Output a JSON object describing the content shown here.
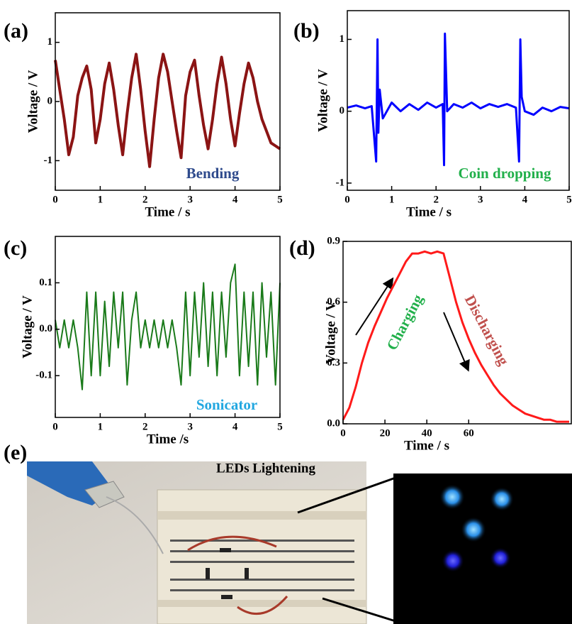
{
  "chart_data": [
    {
      "type": "line",
      "panel": "(a)",
      "xlabel": "Time / s",
      "ylabel": "Voltage / V",
      "annotations": [
        "Bending"
      ],
      "xlim": [
        0,
        5
      ],
      "xticks": [
        0,
        1,
        2,
        3,
        4,
        5
      ],
      "ylim": [
        -1.5,
        1.5
      ],
      "yticks": [
        -1,
        0,
        1
      ],
      "series": [
        {
          "color": "#8b1414",
          "x": [
            0,
            0.1,
            0.2,
            0.3,
            0.4,
            0.5,
            0.6,
            0.7,
            0.8,
            0.9,
            1.0,
            1.1,
            1.2,
            1.3,
            1.4,
            1.5,
            1.6,
            1.7,
            1.8,
            1.9,
            2.0,
            2.1,
            2.2,
            2.3,
            2.4,
            2.5,
            2.6,
            2.7,
            2.8,
            2.9,
            3.0,
            3.1,
            3.2,
            3.3,
            3.4,
            3.5,
            3.6,
            3.7,
            3.8,
            3.9,
            4.0,
            4.1,
            4.2,
            4.3,
            4.4,
            4.5,
            4.6,
            4.7,
            4.8,
            4.9,
            5.0
          ],
          "values": [
            0.7,
            0.2,
            -0.3,
            -0.9,
            -0.6,
            0.1,
            0.4,
            0.6,
            0.2,
            -0.7,
            -0.3,
            0.3,
            0.65,
            0.2,
            -0.4,
            -0.9,
            -0.2,
            0.4,
            0.8,
            0.2,
            -0.5,
            -1.1,
            -0.3,
            0.4,
            0.8,
            0.5,
            0.0,
            -0.5,
            -0.95,
            0.1,
            0.5,
            0.7,
            0.1,
            -0.4,
            -0.8,
            -0.3,
            0.3,
            0.75,
            0.3,
            -0.3,
            -0.75,
            -0.2,
            0.3,
            0.65,
            0.4,
            0.0,
            -0.3,
            -0.5,
            -0.7,
            -0.75,
            -0.8
          ]
        }
      ]
    },
    {
      "type": "line",
      "panel": "(b)",
      "xlabel": "Time / s",
      "ylabel": "Voltage / V",
      "annotations": [
        "Coin dropping"
      ],
      "xlim": [
        0,
        5
      ],
      "xticks": [
        0,
        1,
        2,
        3,
        4,
        5
      ],
      "ylim": [
        -1.1,
        1.4
      ],
      "yticks": [
        -1,
        0,
        1
      ],
      "series": [
        {
          "color": "#0000ff",
          "x": [
            0,
            0.2,
            0.4,
            0.55,
            0.65,
            0.68,
            0.7,
            0.73,
            0.8,
            1.0,
            1.2,
            1.4,
            1.6,
            1.8,
            2.0,
            2.15,
            2.18,
            2.2,
            2.25,
            2.4,
            2.6,
            2.8,
            3.0,
            3.2,
            3.4,
            3.6,
            3.8,
            3.87,
            3.9,
            3.93,
            4.0,
            4.2,
            4.4,
            4.6,
            4.8,
            5.0
          ],
          "values": [
            0.05,
            0.08,
            0.04,
            0.07,
            -0.7,
            1.0,
            -0.3,
            0.3,
            -0.1,
            0.12,
            0.0,
            0.1,
            0.02,
            0.12,
            0.05,
            0.1,
            -0.75,
            1.08,
            0.0,
            0.1,
            0.05,
            0.12,
            0.04,
            0.1,
            0.06,
            0.1,
            0.05,
            -0.7,
            1.0,
            0.2,
            0.0,
            -0.05,
            0.05,
            0.0,
            0.06,
            0.04
          ]
        }
      ]
    },
    {
      "type": "line",
      "panel": "(c)",
      "xlabel": "Time /s",
      "ylabel": "Voltage / V",
      "annotations": [
        "Sonicator"
      ],
      "xlim": [
        0,
        5
      ],
      "xticks": [
        0,
        1,
        2,
        3,
        4,
        5
      ],
      "ylim": [
        -0.19,
        0.2
      ],
      "yticks": [
        -0.1,
        {
          "value": 0,
          "label": "0.0"
        },
        0.1
      ],
      "series": [
        {
          "color": "#1a7a1a",
          "x": [
            0,
            0.1,
            0.2,
            0.3,
            0.4,
            0.5,
            0.6,
            0.7,
            0.8,
            0.9,
            1.0,
            1.1,
            1.2,
            1.3,
            1.4,
            1.5,
            1.6,
            1.7,
            1.8,
            1.9,
            2.0,
            2.1,
            2.2,
            2.3,
            2.4,
            2.5,
            2.6,
            2.7,
            2.8,
            2.9,
            3.0,
            3.1,
            3.2,
            3.3,
            3.4,
            3.5,
            3.6,
            3.7,
            3.8,
            3.9,
            4.0,
            4.1,
            4.2,
            4.3,
            4.4,
            4.5,
            4.6,
            4.7,
            4.8,
            4.9,
            5.0
          ],
          "values": [
            0.02,
            -0.04,
            0.02,
            -0.04,
            0.02,
            -0.04,
            -0.13,
            0.08,
            -0.1,
            0.08,
            -0.1,
            0.06,
            -0.08,
            0.08,
            -0.04,
            0.08,
            -0.12,
            0.02,
            0.08,
            -0.04,
            0.02,
            -0.04,
            0.02,
            -0.04,
            0.02,
            -0.04,
            0.02,
            -0.04,
            -0.12,
            0.08,
            -0.1,
            0.08,
            -0.06,
            0.1,
            -0.08,
            0.08,
            -0.1,
            0.08,
            -0.06,
            0.1,
            0.14,
            -0.1,
            0.08,
            -0.08,
            0.08,
            -0.12,
            0.1,
            -0.06,
            0.08,
            -0.12,
            0.1
          ]
        }
      ]
    },
    {
      "type": "line",
      "panel": "(d)",
      "xlabel": "Time / s",
      "ylabel": "Voltage / V",
      "annotations": [
        "Charging",
        "Discharging"
      ],
      "xlim": [
        0,
        109
      ],
      "xticks": [
        0,
        20,
        40,
        60
      ],
      "ylim": [
        0,
        0.9
      ],
      "yticks": [
        {
          "value": 0,
          "label": "0.0"
        },
        0.3,
        0.6,
        0.9
      ],
      "series": [
        {
          "color": "#ff1a1a",
          "x": [
            0,
            3,
            6,
            9,
            12,
            15,
            18,
            21,
            24,
            27,
            30,
            33,
            36,
            39,
            42,
            45,
            48,
            51,
            54,
            57,
            60,
            63,
            66,
            69,
            72,
            75,
            78,
            81,
            84,
            87,
            90,
            93,
            96,
            99,
            102,
            105,
            108
          ],
          "values": [
            0.02,
            0.08,
            0.18,
            0.3,
            0.4,
            0.48,
            0.55,
            0.62,
            0.68,
            0.74,
            0.8,
            0.84,
            0.84,
            0.85,
            0.84,
            0.85,
            0.84,
            0.72,
            0.6,
            0.5,
            0.42,
            0.35,
            0.29,
            0.24,
            0.19,
            0.15,
            0.12,
            0.09,
            0.07,
            0.05,
            0.04,
            0.03,
            0.02,
            0.02,
            0.01,
            0.01,
            0.01
          ]
        }
      ]
    }
  ],
  "panel_e": {
    "panel": "(e)",
    "caption": "LEDs Lightening"
  }
}
